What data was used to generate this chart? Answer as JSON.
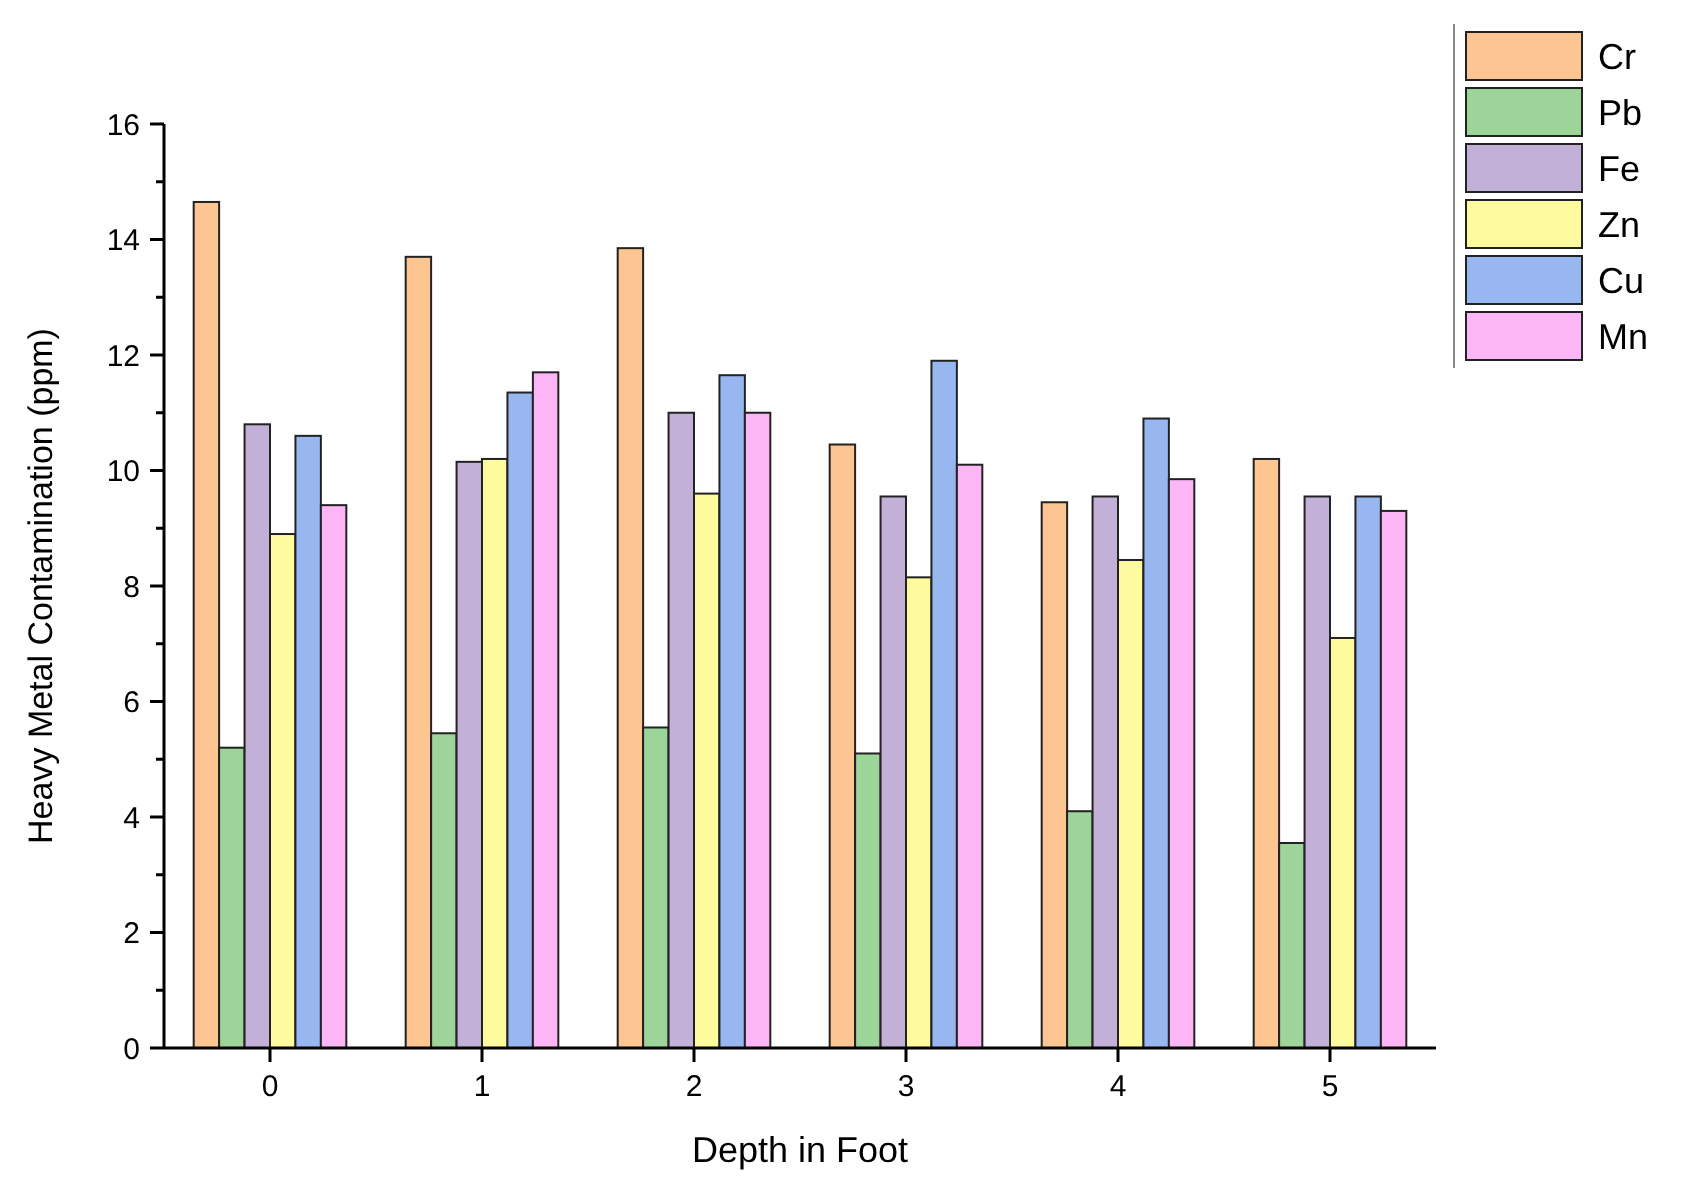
{
  "chart_data": {
    "type": "bar",
    "xlabel": "Depth in Foot",
    "ylabel": "Heavy Metal Contamination (ppm)",
    "categories": [
      "0",
      "1",
      "2",
      "3",
      "4",
      "5"
    ],
    "series": [
      {
        "name": "Cr",
        "color": "#fdc591",
        "values": [
          14.65,
          13.7,
          13.85,
          10.45,
          9.45,
          10.2
        ]
      },
      {
        "name": "Pb",
        "color": "#9dd49a",
        "values": [
          5.2,
          5.45,
          5.55,
          5.1,
          4.1,
          3.55
        ]
      },
      {
        "name": "Fe",
        "color": "#c2b0d8",
        "values": [
          10.8,
          10.15,
          11.0,
          9.55,
          9.55,
          9.55
        ]
      },
      {
        "name": "Zn",
        "color": "#fdfb9d",
        "values": [
          8.9,
          10.2,
          9.6,
          8.15,
          8.45,
          7.1
        ]
      },
      {
        "name": "Cu",
        "color": "#98b6ef",
        "values": [
          10.6,
          11.35,
          11.65,
          11.9,
          10.9,
          9.55
        ]
      },
      {
        "name": "Mn",
        "color": "#fcb5f5",
        "values": [
          9.4,
          11.7,
          11.0,
          10.1,
          9.85,
          9.3
        ]
      }
    ],
    "ylim": [
      0,
      16
    ],
    "yticks": [
      0,
      {
        "value": 1,
        "label": null
      },
      2,
      {
        "value": 3,
        "label": null
      },
      4,
      {
        "value": 5,
        "label": null
      },
      6,
      {
        "value": 7,
        "label": null
      },
      8,
      {
        "value": 9,
        "label": null
      },
      10,
      {
        "value": 11,
        "label": null
      },
      12,
      {
        "value": 13,
        "label": null
      },
      14,
      {
        "value": 15,
        "label": null
      },
      16
    ],
    "grid": false,
    "legend": "top right"
  }
}
